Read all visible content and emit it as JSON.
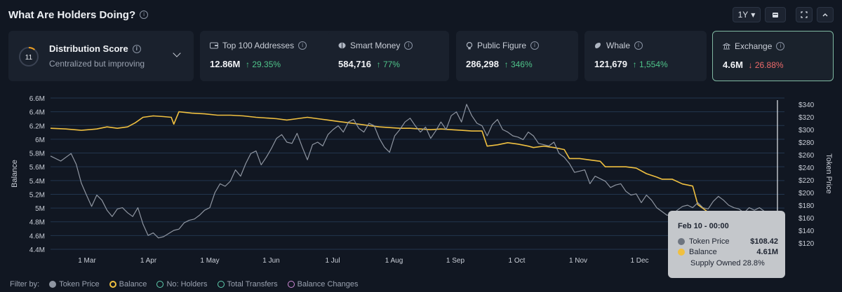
{
  "header": {
    "title": "What Are Holders Doing?",
    "range": "1Y"
  },
  "distribution": {
    "score": "11",
    "score_fraction": 0.11,
    "title": "Distribution Score",
    "subtitle": "Centralized but improving"
  },
  "cards": [
    {
      "label": "Top 100 Addresses",
      "value": "12.86M",
      "change": "↑ 29.35%",
      "dir": "up",
      "icon": "wallet-icon"
    },
    {
      "label": "Smart Money",
      "value": "584,716",
      "change": "↑ 77%",
      "dir": "up",
      "icon": "brain-icon"
    },
    {
      "label": "Public Figure",
      "value": "286,298",
      "change": "↑ 346%",
      "dir": "up",
      "icon": "lightbulb-icon"
    },
    {
      "label": "Whale",
      "value": "121,679",
      "change": "↑ 1,554%",
      "dir": "up",
      "icon": "whale-icon"
    },
    {
      "label": "Exchange",
      "value": "4.6M",
      "change": "↓ 26.88%",
      "dir": "down",
      "icon": "bank-icon"
    }
  ],
  "chart_data": {
    "type": "line",
    "xlabel": "",
    "ylabel": "Balance",
    "y2label": "Token Price",
    "ylim": [
      4.4,
      6.6
    ],
    "y2lim": [
      110,
      350
    ],
    "yticks": [
      "4.4M",
      "4.6M",
      "4.8M",
      "5M",
      "5.2M",
      "5.4M",
      "5.6M",
      "5.8M",
      "6M",
      "6.2M",
      "6.4M",
      "6.6M"
    ],
    "y2ticks": [
      "$120",
      "$140",
      "$160",
      "$180",
      "$200",
      "$220",
      "$240",
      "$260",
      "$280",
      "$300",
      "$320",
      "$340"
    ],
    "xticks": [
      "1 Mar",
      "1 Apr",
      "1 May",
      "1 Jun",
      "1 Jul",
      "1 Aug",
      "1 Sep",
      "1 Oct",
      "1 Nov",
      "1 Dec"
    ],
    "grid": true,
    "series": [
      {
        "name": "Balance",
        "color": "#f0c040",
        "axis": "left",
        "points": [
          [
            0,
            6.16
          ],
          [
            6,
            6.15
          ],
          [
            12,
            6.13
          ],
          [
            18,
            6.15
          ],
          [
            22,
            6.18
          ],
          [
            26,
            6.16
          ],
          [
            30,
            6.18
          ],
          [
            33,
            6.24
          ],
          [
            36,
            6.32
          ],
          [
            40,
            6.34
          ],
          [
            44,
            6.33
          ],
          [
            47,
            6.32
          ],
          [
            48,
            6.22
          ],
          [
            50,
            6.4
          ],
          [
            55,
            6.38
          ],
          [
            60,
            6.37
          ],
          [
            65,
            6.35
          ],
          [
            70,
            6.35
          ],
          [
            75,
            6.34
          ],
          [
            80,
            6.32
          ],
          [
            84,
            6.31
          ],
          [
            88,
            6.3
          ],
          [
            92,
            6.28
          ],
          [
            96,
            6.3
          ],
          [
            100,
            6.32
          ],
          [
            104,
            6.3
          ],
          [
            108,
            6.28
          ],
          [
            112,
            6.26
          ],
          [
            116,
            6.24
          ],
          [
            120,
            6.22
          ],
          [
            124,
            6.2
          ],
          [
            128,
            6.18
          ],
          [
            132,
            6.17
          ],
          [
            136,
            6.16
          ],
          [
            140,
            6.16
          ],
          [
            144,
            6.15
          ],
          [
            148,
            6.14
          ],
          [
            152,
            6.15
          ],
          [
            156,
            6.14
          ],
          [
            160,
            6.13
          ],
          [
            164,
            6.12
          ],
          [
            168,
            6.12
          ],
          [
            170,
            5.9
          ],
          [
            174,
            5.92
          ],
          [
            178,
            5.95
          ],
          [
            182,
            5.93
          ],
          [
            186,
            5.9
          ],
          [
            188,
            5.88
          ],
          [
            192,
            5.9
          ],
          [
            196,
            5.88
          ],
          [
            200,
            5.85
          ],
          [
            202,
            5.72
          ],
          [
            206,
            5.72
          ],
          [
            210,
            5.7
          ],
          [
            214,
            5.68
          ],
          [
            216,
            5.6
          ],
          [
            220,
            5.6
          ],
          [
            224,
            5.6
          ],
          [
            228,
            5.58
          ],
          [
            232,
            5.5
          ],
          [
            236,
            5.45
          ],
          [
            238,
            5.42
          ],
          [
            242,
            5.42
          ],
          [
            246,
            5.35
          ],
          [
            250,
            5.32
          ],
          [
            252,
            5.05
          ],
          [
            256,
            4.94
          ],
          [
            260,
            4.9
          ],
          [
            264,
            4.88
          ],
          [
            268,
            4.86
          ],
          [
            272,
            4.84
          ],
          [
            276,
            4.78
          ],
          [
            280,
            4.75
          ],
          [
            283,
            4.61
          ]
        ]
      },
      {
        "name": "Token Price",
        "color": "#8f96a2",
        "axis": "right",
        "points": [
          [
            0,
            258
          ],
          [
            4,
            250
          ],
          [
            8,
            262
          ],
          [
            10,
            245
          ],
          [
            12,
            215
          ],
          [
            14,
            196
          ],
          [
            16,
            178
          ],
          [
            18,
            196
          ],
          [
            20,
            188
          ],
          [
            22,
            172
          ],
          [
            24,
            162
          ],
          [
            26,
            174
          ],
          [
            28,
            176
          ],
          [
            30,
            168
          ],
          [
            32,
            162
          ],
          [
            34,
            176
          ],
          [
            36,
            150
          ],
          [
            38,
            132
          ],
          [
            40,
            136
          ],
          [
            42,
            128
          ],
          [
            44,
            130
          ],
          [
            46,
            135
          ],
          [
            48,
            140
          ],
          [
            50,
            142
          ],
          [
            52,
            152
          ],
          [
            54,
            156
          ],
          [
            56,
            158
          ],
          [
            58,
            164
          ],
          [
            60,
            172
          ],
          [
            62,
            176
          ],
          [
            64,
            200
          ],
          [
            66,
            214
          ],
          [
            68,
            210
          ],
          [
            70,
            218
          ],
          [
            72,
            236
          ],
          [
            74,
            226
          ],
          [
            76,
            246
          ],
          [
            78,
            262
          ],
          [
            80,
            266
          ],
          [
            82,
            244
          ],
          [
            84,
            256
          ],
          [
            86,
            270
          ],
          [
            88,
            286
          ],
          [
            90,
            292
          ],
          [
            92,
            280
          ],
          [
            94,
            278
          ],
          [
            96,
            294
          ],
          [
            98,
            272
          ],
          [
            100,
            252
          ],
          [
            102,
            276
          ],
          [
            104,
            280
          ],
          [
            106,
            274
          ],
          [
            108,
            292
          ],
          [
            110,
            300
          ],
          [
            112,
            306
          ],
          [
            114,
            296
          ],
          [
            116,
            312
          ],
          [
            118,
            316
          ],
          [
            120,
            302
          ],
          [
            122,
            296
          ],
          [
            124,
            310
          ],
          [
            126,
            306
          ],
          [
            128,
            286
          ],
          [
            130,
            272
          ],
          [
            132,
            264
          ],
          [
            134,
            290
          ],
          [
            136,
            300
          ],
          [
            138,
            312
          ],
          [
            140,
            318
          ],
          [
            142,
            306
          ],
          [
            144,
            296
          ],
          [
            146,
            304
          ],
          [
            148,
            286
          ],
          [
            150,
            298
          ],
          [
            152,
            312
          ],
          [
            154,
            300
          ],
          [
            156,
            322
          ],
          [
            158,
            328
          ],
          [
            160,
            312
          ],
          [
            162,
            340
          ],
          [
            164,
            322
          ],
          [
            166,
            310
          ],
          [
            168,
            306
          ],
          [
            170,
            290
          ],
          [
            172,
            308
          ],
          [
            174,
            316
          ],
          [
            176,
            300
          ],
          [
            178,
            296
          ],
          [
            180,
            290
          ],
          [
            182,
            288
          ],
          [
            184,
            284
          ],
          [
            186,
            296
          ],
          [
            188,
            290
          ],
          [
            190,
            278
          ],
          [
            192,
            276
          ],
          [
            194,
            274
          ],
          [
            196,
            280
          ],
          [
            198,
            262
          ],
          [
            200,
            256
          ],
          [
            202,
            246
          ],
          [
            204,
            232
          ],
          [
            206,
            234
          ],
          [
            208,
            236
          ],
          [
            210,
            214
          ],
          [
            212,
            226
          ],
          [
            214,
            222
          ],
          [
            216,
            218
          ],
          [
            218,
            208
          ],
          [
            220,
            212
          ],
          [
            222,
            214
          ],
          [
            224,
            202
          ],
          [
            226,
            196
          ],
          [
            228,
            198
          ],
          [
            230,
            184
          ],
          [
            232,
            196
          ],
          [
            234,
            188
          ],
          [
            236,
            176
          ],
          [
            238,
            170
          ],
          [
            240,
            164
          ],
          [
            242,
            166
          ],
          [
            244,
            172
          ],
          [
            246,
            178
          ],
          [
            248,
            180
          ],
          [
            250,
            176
          ],
          [
            252,
            184
          ],
          [
            254,
            176
          ],
          [
            256,
            174
          ],
          [
            258,
            186
          ],
          [
            260,
            194
          ],
          [
            262,
            188
          ],
          [
            264,
            180
          ],
          [
            266,
            176
          ],
          [
            268,
            174
          ],
          [
            270,
            168
          ],
          [
            272,
            176
          ],
          [
            274,
            172
          ],
          [
            276,
            176
          ],
          [
            278,
            170
          ],
          [
            280,
            160
          ],
          [
            283,
            108.42
          ]
        ]
      }
    ],
    "tooltip": {
      "title": "Feb 10 - 00:00",
      "token_price_label": "Token Price",
      "token_price": "$108.42",
      "balance_label": "Balance",
      "balance": "4.61M",
      "supply_owned": "Supply Owned 28.8%"
    }
  },
  "filter": {
    "label": "Filter by:",
    "items": [
      {
        "label": "Token Price",
        "color": "#8f96a2",
        "style": "solid"
      },
      {
        "label": "Balance",
        "color": "#f0c040",
        "style": "ring"
      },
      {
        "label": "No: Holders",
        "color": "#5fd0b0",
        "style": "outline"
      },
      {
        "label": "Total Transfers",
        "color": "#5fd0b0",
        "style": "outline"
      },
      {
        "label": "Balance Changes",
        "color": "#d08ad8",
        "style": "outline"
      }
    ]
  }
}
